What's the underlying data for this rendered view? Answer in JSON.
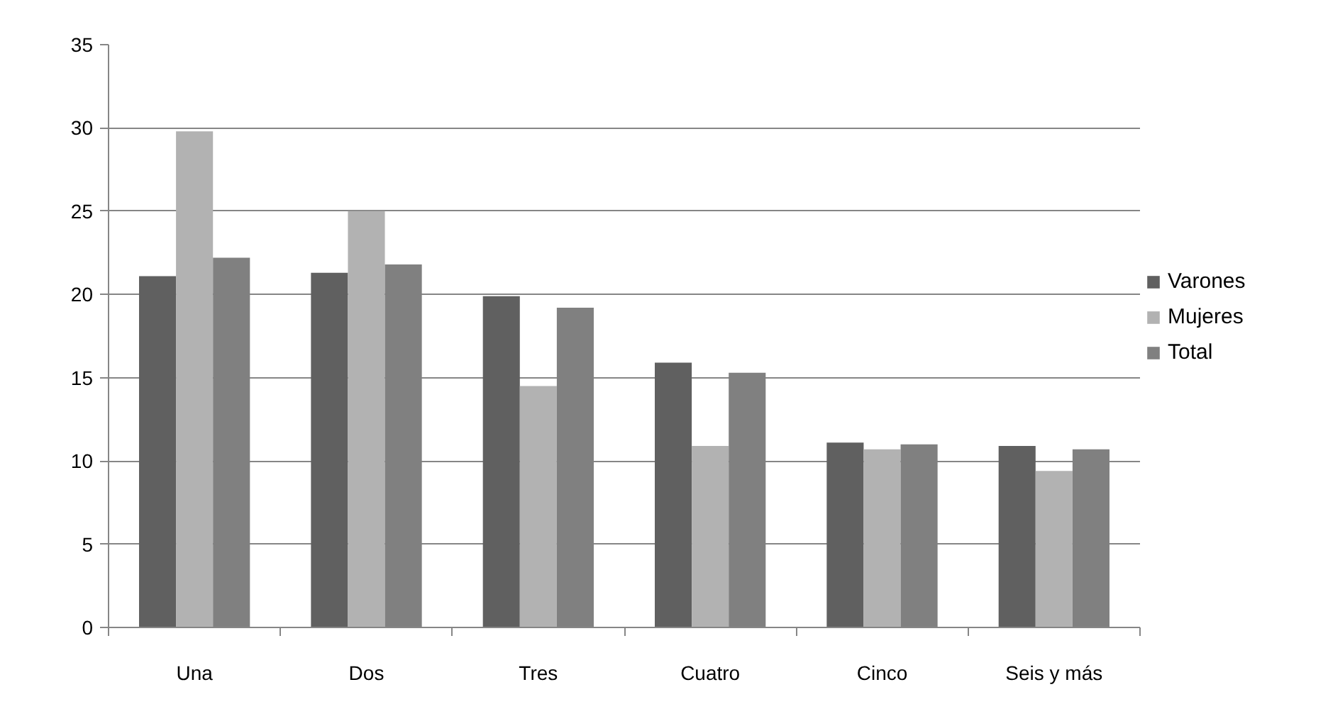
{
  "chart_data": {
    "type": "bar",
    "categories": [
      "Una",
      "Dos",
      "Tres",
      "Cuatro",
      "Cinco",
      "Seis y más"
    ],
    "series": [
      {
        "name": "Varones",
        "color": "#606060",
        "values": [
          21.1,
          21.3,
          19.9,
          15.9,
          11.1,
          10.9
        ]
      },
      {
        "name": "Mujeres",
        "color": "#b2b2b2",
        "values": [
          29.8,
          25.0,
          14.5,
          10.9,
          10.7,
          9.4
        ]
      },
      {
        "name": "Total",
        "color": "#808080",
        "values": [
          22.2,
          21.8,
          19.2,
          15.3,
          11.0,
          10.7
        ]
      }
    ],
    "ylim": [
      0,
      35
    ],
    "yticks": [
      0,
      5,
      10,
      15,
      20,
      25,
      30,
      35
    ],
    "grid": "y",
    "legend": "right"
  }
}
